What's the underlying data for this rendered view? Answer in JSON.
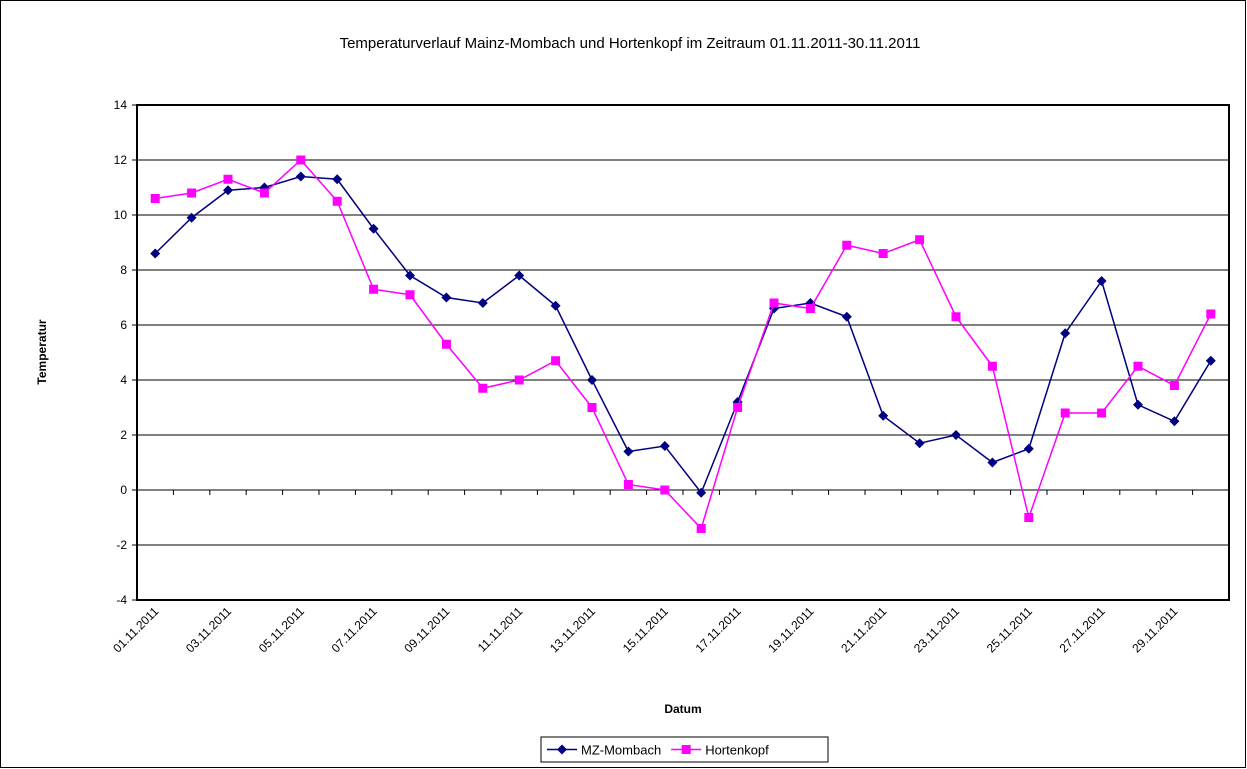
{
  "chart_data": {
    "type": "line",
    "title": "Temperaturverlauf Mainz-Mombach und Hortenkopf im Zeitraum 01.11.2011-30.11.2011",
    "x_label": "Datum",
    "y_label": "Temperatur",
    "categories": [
      "01.11.2011",
      null,
      "03.11.2011",
      null,
      "05.11.2011",
      null,
      "07.11.2011",
      null,
      "09.11.2011",
      null,
      "11.11.2011",
      null,
      "13.11.2011",
      null,
      "15.11.2011",
      null,
      "17.11.2011",
      null,
      "19.11.2011",
      null,
      "21.11.2011",
      null,
      "23.11.2011",
      null,
      "25.11.2011",
      null,
      "27.11.2011",
      null,
      "29.11.2011",
      null
    ],
    "series": [
      {
        "name": "MZ-Mombach",
        "color": "#000080",
        "marker": "diamond",
        "values": [
          8.6,
          9.9,
          10.9,
          11.0,
          11.4,
          11.3,
          9.5,
          7.8,
          7.0,
          6.8,
          7.8,
          6.7,
          4.0,
          1.4,
          1.6,
          -0.1,
          3.2,
          6.6,
          6.8,
          6.3,
          2.7,
          1.7,
          2.0,
          1.0,
          1.5,
          5.7,
          7.6,
          3.1,
          2.5,
          4.7
        ]
      },
      {
        "name": "Hortenkopf",
        "color": "#ff00ff",
        "marker": "square",
        "values": [
          10.6,
          10.8,
          11.3,
          10.8,
          12.0,
          10.5,
          7.3,
          7.1,
          5.3,
          3.7,
          4.0,
          4.7,
          3.0,
          0.2,
          0.0,
          -1.4,
          3.0,
          6.8,
          6.6,
          8.9,
          8.6,
          9.1,
          6.3,
          4.5,
          -1.0,
          2.8,
          2.8,
          4.5,
          3.8,
          6.4
        ]
      }
    ],
    "ylim": [
      -4,
      14
    ],
    "yticks": [
      -4,
      -2,
      0,
      2,
      4,
      6,
      8,
      10,
      12,
      14
    ],
    "grid": true,
    "legend": "bottom"
  }
}
